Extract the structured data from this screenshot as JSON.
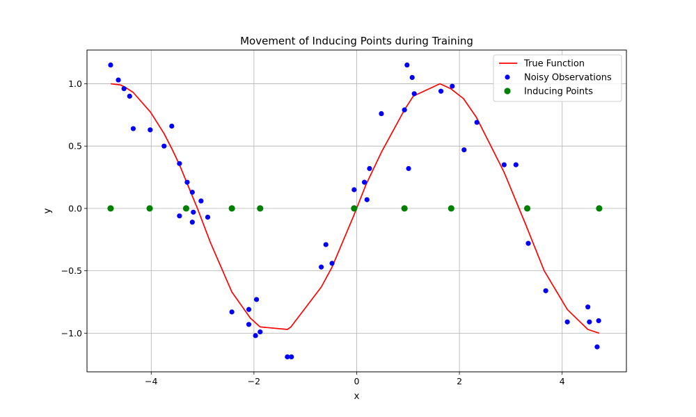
{
  "chart_data": {
    "type": "scatter",
    "title": "Movement of Inducing Points during Training",
    "xlabel": "x",
    "ylabel": "y",
    "xlim": [
      -5.25,
      5.25
    ],
    "ylim": [
      -1.31,
      1.27
    ],
    "xticks": [
      -4,
      -2,
      0,
      2,
      4
    ],
    "yticks": [
      -1.0,
      -0.5,
      0.0,
      0.5,
      1.0
    ],
    "xtick_labels": [
      "−4",
      "−2",
      "0",
      "2",
      "4"
    ],
    "ytick_labels": [
      "−1.0",
      "−0.5",
      "0.0",
      "0.5",
      "1.0"
    ],
    "grid": true,
    "legend_position": "top-right",
    "series": [
      {
        "name": "True Function",
        "kind": "line",
        "color": "#ff0000",
        "x": [
          -4.79,
          -4.6,
          -4.5,
          -4.35,
          -4.01,
          -3.75,
          -3.6,
          -3.45,
          -3.3,
          -3.2,
          -3.1,
          -2.85,
          -2.43,
          -2.07,
          -1.88,
          -1.35,
          -1.28,
          -0.69,
          -0.48,
          -0.05,
          0.18,
          0.48,
          0.93,
          1.1,
          1.62,
          1.83,
          2.08,
          2.33,
          2.87,
          3.3,
          3.65,
          4.1,
          4.5,
          4.72
        ],
        "y": [
          1.0,
          0.99,
          0.97,
          0.93,
          0.77,
          0.6,
          0.48,
          0.35,
          0.2,
          0.1,
          0.0,
          -0.27,
          -0.67,
          -0.88,
          -0.95,
          -0.97,
          -0.95,
          -0.63,
          -0.47,
          -0.05,
          0.19,
          0.45,
          0.79,
          0.9,
          1.0,
          0.96,
          0.88,
          0.73,
          0.29,
          -0.14,
          -0.5,
          -0.81,
          -0.97,
          -1.0
        ]
      },
      {
        "name": "Noisy Observations",
        "kind": "scatter",
        "color": "#0000ff",
        "x": [
          -4.79,
          -4.64,
          -4.53,
          -4.42,
          -4.35,
          -4.02,
          -3.75,
          -3.6,
          -3.45,
          -3.45,
          -3.3,
          -3.2,
          -3.18,
          -3.2,
          -3.03,
          -2.9,
          -2.43,
          -2.1,
          -2.1,
          -1.97,
          -1.95,
          -1.88,
          -1.35,
          -1.27,
          -0.69,
          -0.6,
          -0.48,
          -0.05,
          0.15,
          0.2,
          0.25,
          0.48,
          0.93,
          0.98,
          1.01,
          1.08,
          1.12,
          1.64,
          1.86,
          2.09,
          2.34,
          2.87,
          3.1,
          3.34,
          3.68,
          4.1,
          4.5,
          4.53,
          4.68,
          4.71
        ],
        "y": [
          1.15,
          1.03,
          0.96,
          0.9,
          0.64,
          0.63,
          0.5,
          0.66,
          0.36,
          -0.06,
          0.21,
          0.13,
          -0.03,
          -0.11,
          0.06,
          -0.07,
          -0.83,
          -0.81,
          -0.93,
          -1.02,
          -0.73,
          -0.99,
          -1.19,
          -1.19,
          -0.47,
          -0.29,
          -0.44,
          0.15,
          0.21,
          0.07,
          0.32,
          0.76,
          0.79,
          1.15,
          0.32,
          1.05,
          0.92,
          0.94,
          0.98,
          0.47,
          0.69,
          0.35,
          0.35,
          -0.28,
          -0.66,
          -0.91,
          -0.79,
          -0.91,
          -1.11,
          -0.9
        ]
      },
      {
        "name": "Inducing Points",
        "kind": "scatter",
        "color": "#008000",
        "x": [
          -4.79,
          -4.03,
          -3.32,
          -2.43,
          -1.88,
          -0.05,
          0.93,
          1.84,
          3.32,
          4.72
        ],
        "y": [
          0,
          0,
          0,
          0,
          0,
          0,
          0,
          0,
          0,
          0
        ]
      }
    ]
  }
}
